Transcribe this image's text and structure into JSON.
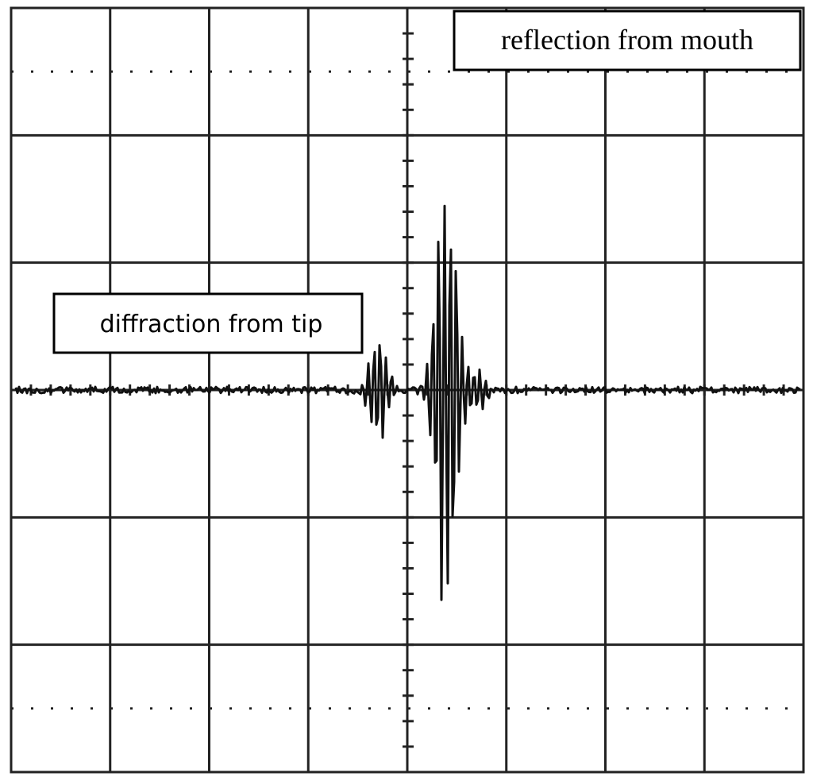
{
  "annotations": {
    "reflection": "reflection from mouth",
    "diffraction": "diffraction from tip"
  }
}
